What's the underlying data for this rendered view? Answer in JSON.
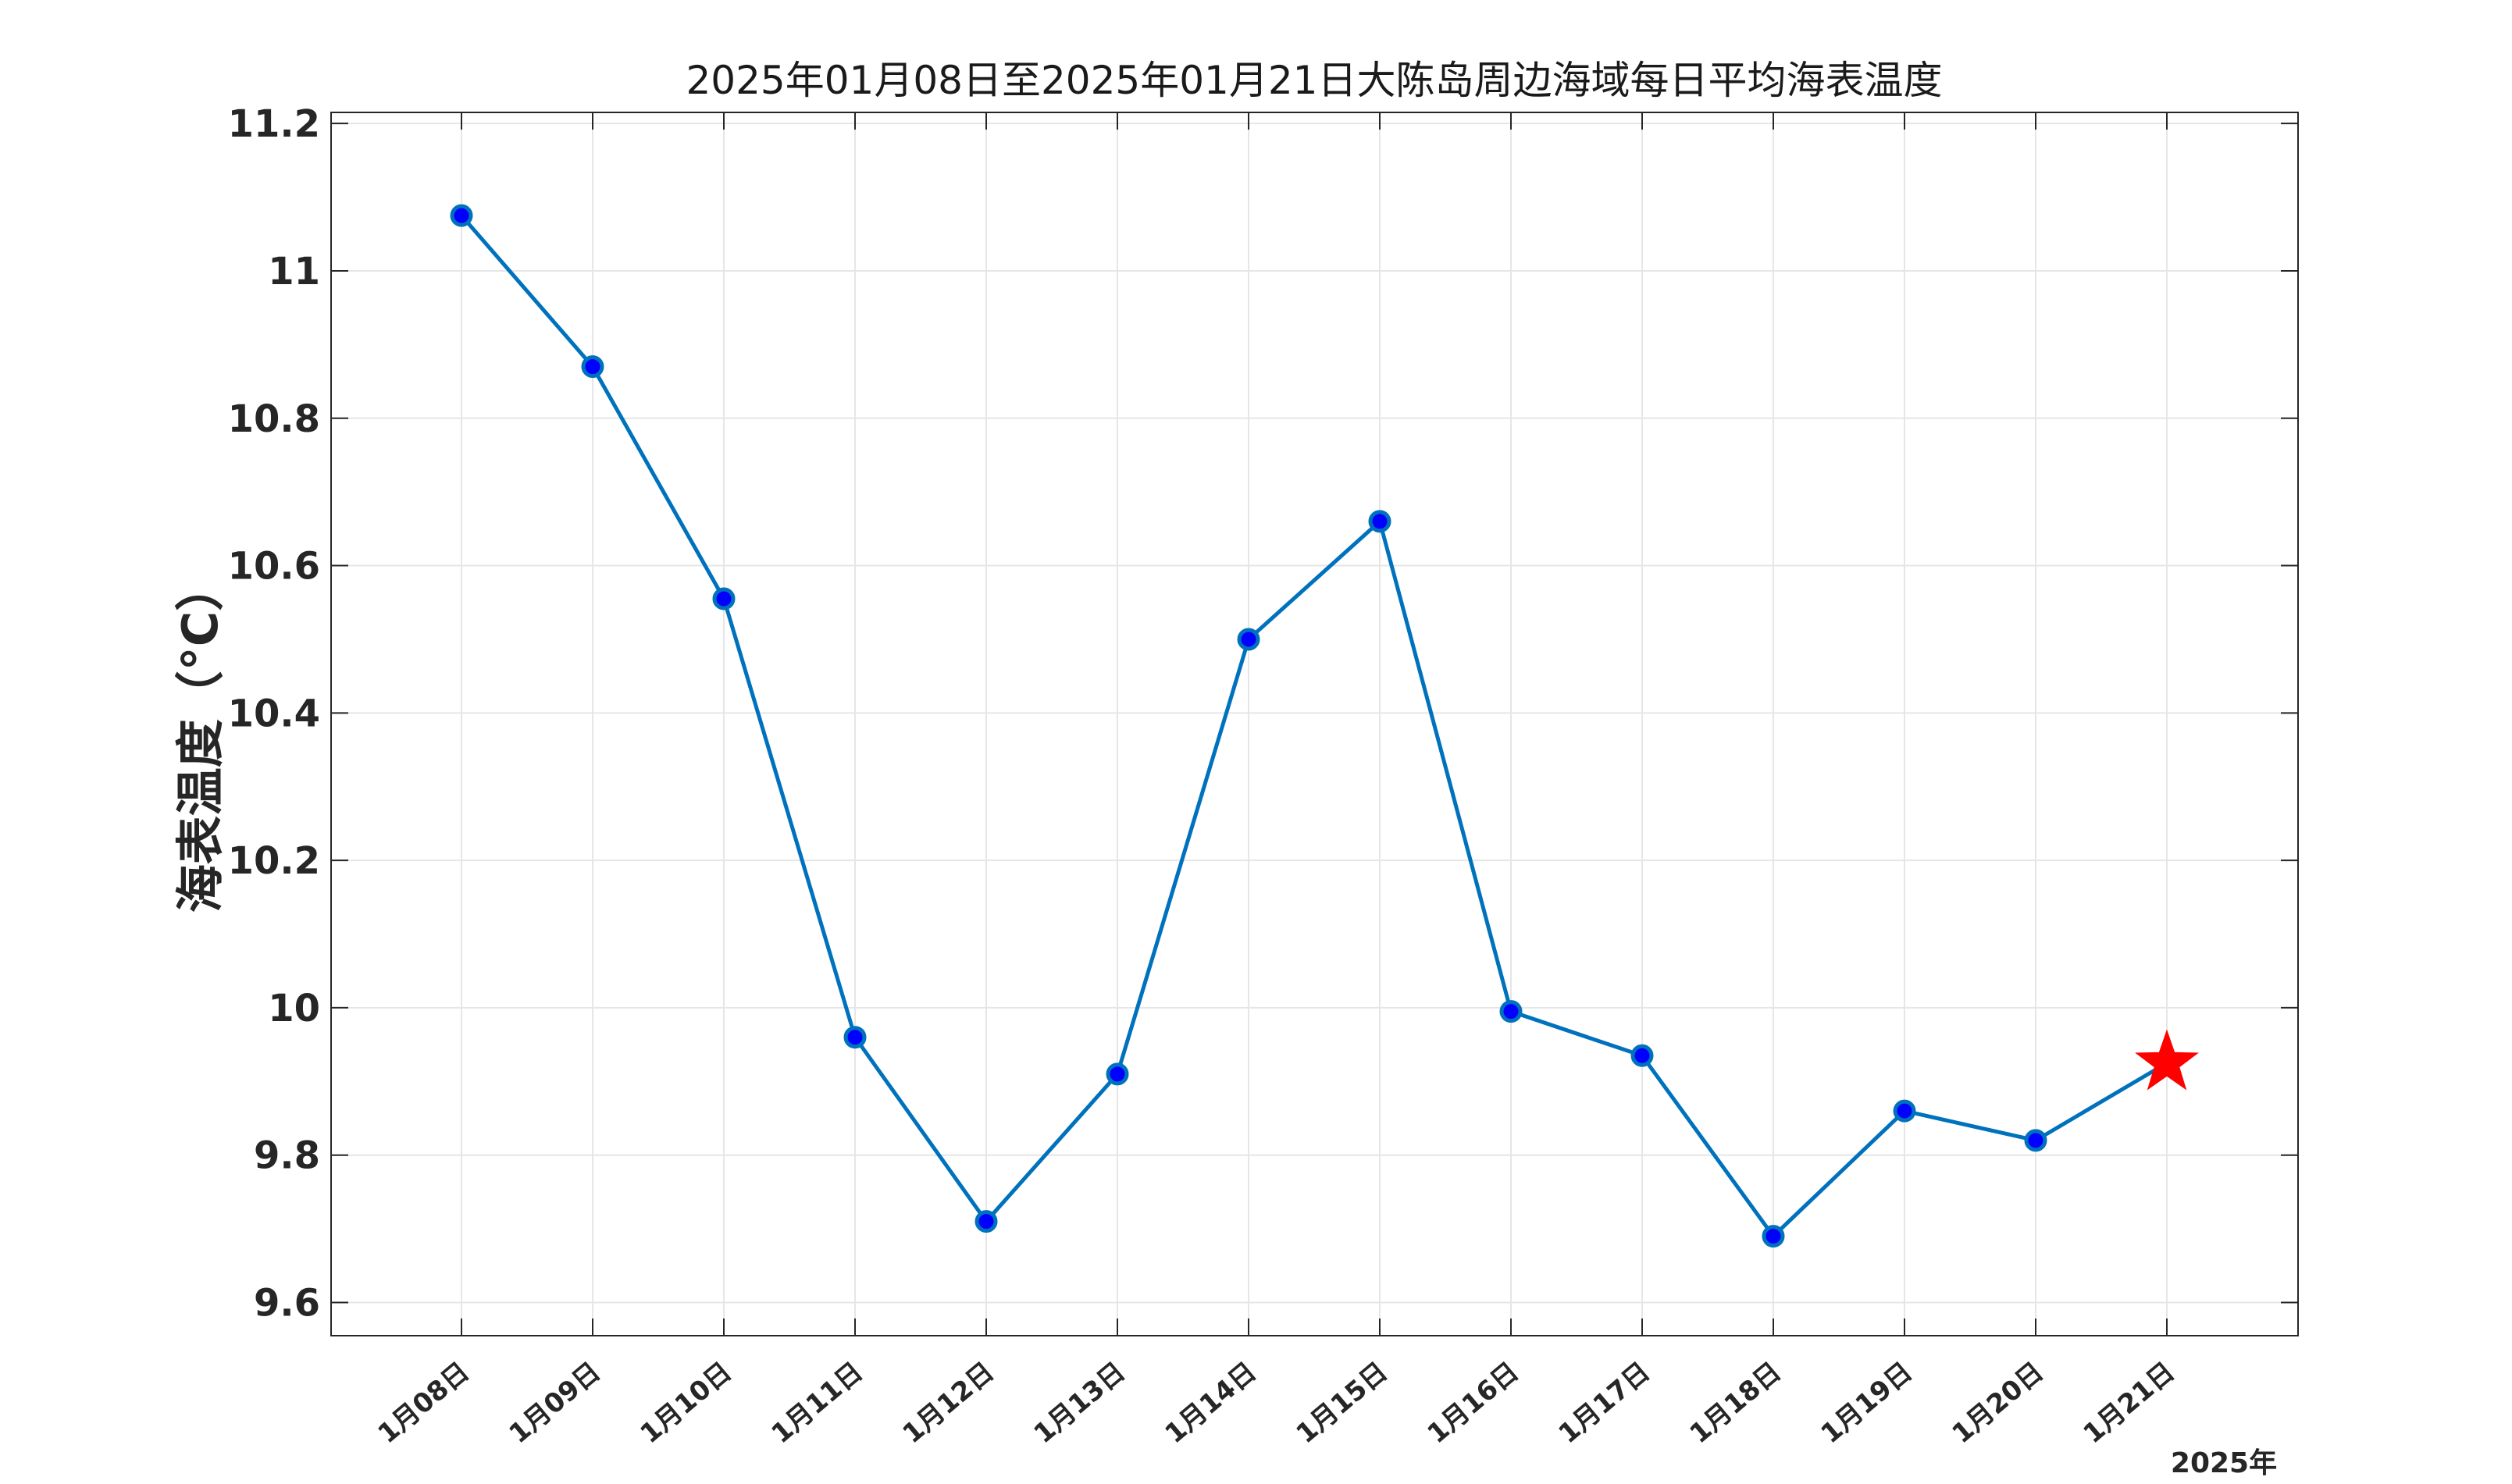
{
  "chart_data": {
    "type": "line",
    "title": "2025年01月08日至2025年01月21日大陈岛周边海域每日平均海表温度",
    "ylabel": "海表温度（°C）",
    "xlabel": "",
    "x_note": "2025年",
    "categories": [
      "1月08日",
      "1月09日",
      "1月10日",
      "1月11日",
      "1月12日",
      "1月13日",
      "1月14日",
      "1月15日",
      "1月16日",
      "1月17日",
      "1月18日",
      "1月19日",
      "1月20日",
      "1月21日"
    ],
    "series": [
      {
        "values": [
          11.075,
          10.87,
          10.555,
          9.96,
          9.71,
          9.91,
          10.5,
          10.66,
          9.995,
          9.935,
          9.69,
          9.86,
          9.82,
          9.925
        ]
      }
    ],
    "highlight_last_point": true,
    "ylim": [
      9.555,
      11.215
    ],
    "yticks": [
      9.6,
      9.8,
      10,
      10.2,
      10.4,
      10.6,
      10.8,
      11,
      11.2
    ],
    "ytick_labels": [
      "9.6",
      "9.8",
      "10",
      "10.2",
      "10.4",
      "10.6",
      "10.8",
      "11",
      "11.2"
    ],
    "grid": true,
    "legend": "none",
    "colors": {
      "line": "#0072BD",
      "marker_fill": "#0000FF",
      "marker_edge": "#0072BD",
      "highlight": "#FF0000",
      "grid": "#E6E6E6",
      "axis": "#262626"
    }
  }
}
